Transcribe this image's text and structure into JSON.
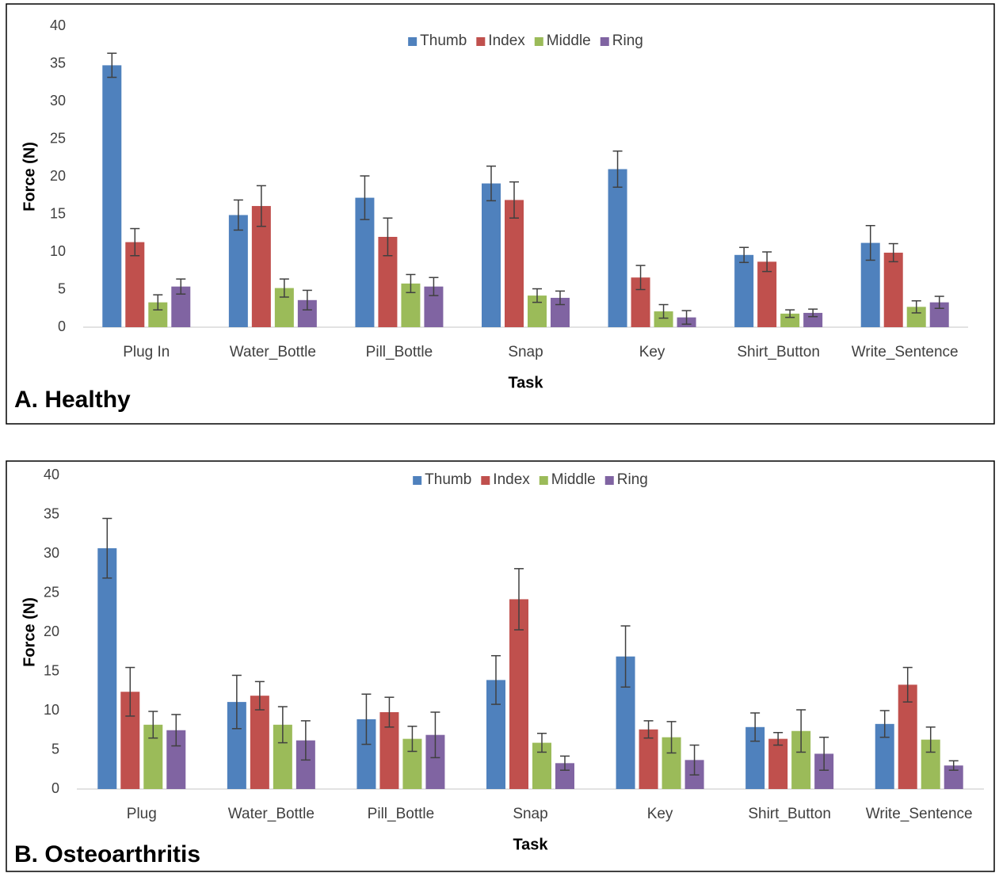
{
  "chart_data": [
    {
      "type": "bar",
      "panel_label": "A. Healthy",
      "x_label": "Task",
      "y_label": "Force (N)",
      "categories": [
        "Plug In",
        "Water_Bottle",
        "Pill_Bottle",
        "Snap",
        "Key",
        "Shirt_Button",
        "Write_Sentence"
      ],
      "ylim": [
        0,
        40
      ],
      "yticks": [
        0,
        5,
        10,
        15,
        20,
        25,
        30,
        35,
        40
      ],
      "legend": "top",
      "series": [
        {
          "name": "Thumb",
          "color": "#4f81bd",
          "values": [
            34.8,
            14.9,
            17.2,
            19.1,
            21.0,
            9.6,
            11.2
          ],
          "errors": [
            1.6,
            2.0,
            2.9,
            2.3,
            2.4,
            1.0,
            2.3
          ]
        },
        {
          "name": "Index",
          "color": "#c0504d",
          "values": [
            11.3,
            16.1,
            12.0,
            16.9,
            6.6,
            8.7,
            9.9
          ],
          "errors": [
            1.8,
            2.7,
            2.5,
            2.4,
            1.6,
            1.3,
            1.2
          ]
        },
        {
          "name": "Middle",
          "color": "#9bbb59",
          "values": [
            3.3,
            5.2,
            5.8,
            4.2,
            2.1,
            1.8,
            2.7
          ],
          "errors": [
            1.0,
            1.2,
            1.2,
            0.9,
            0.9,
            0.5,
            0.8
          ]
        },
        {
          "name": "Ring",
          "color": "#8064a2",
          "values": [
            5.4,
            3.6,
            5.4,
            3.9,
            1.3,
            1.9,
            3.3
          ],
          "errors": [
            1.0,
            1.3,
            1.2,
            0.9,
            0.9,
            0.5,
            0.8
          ]
        }
      ]
    },
    {
      "type": "bar",
      "panel_label": "B. Osteoarthritis",
      "x_label": "Task",
      "y_label": "Force (N)",
      "categories": [
        "Plug",
        "Water_Bottle",
        "Pill_Bottle",
        "Snap",
        "Key",
        "Shirt_Button",
        "Write_Sentence"
      ],
      "ylim": [
        0,
        40
      ],
      "yticks": [
        0,
        5,
        10,
        15,
        20,
        25,
        30,
        35,
        40
      ],
      "legend": "top",
      "series": [
        {
          "name": "Thumb",
          "color": "#4f81bd",
          "values": [
            30.7,
            11.1,
            8.9,
            13.9,
            16.9,
            7.9,
            8.3
          ],
          "errors": [
            3.8,
            3.4,
            3.2,
            3.1,
            3.9,
            1.8,
            1.7
          ]
        },
        {
          "name": "Index",
          "color": "#c0504d",
          "values": [
            12.4,
            11.9,
            9.8,
            24.2,
            7.6,
            6.4,
            13.3
          ],
          "errors": [
            3.1,
            1.8,
            1.9,
            3.9,
            1.1,
            0.8,
            2.2
          ]
        },
        {
          "name": "Middle",
          "color": "#9bbb59",
          "values": [
            8.2,
            8.2,
            6.4,
            5.9,
            6.6,
            7.4,
            6.3
          ],
          "errors": [
            1.7,
            2.3,
            1.6,
            1.2,
            2.0,
            2.7,
            1.6
          ]
        },
        {
          "name": "Ring",
          "color": "#8064a2",
          "values": [
            7.5,
            6.2,
            6.9,
            3.3,
            3.7,
            4.5,
            3.0
          ],
          "errors": [
            2.0,
            2.5,
            2.9,
            0.9,
            1.9,
            2.1,
            0.6
          ]
        }
      ]
    }
  ]
}
